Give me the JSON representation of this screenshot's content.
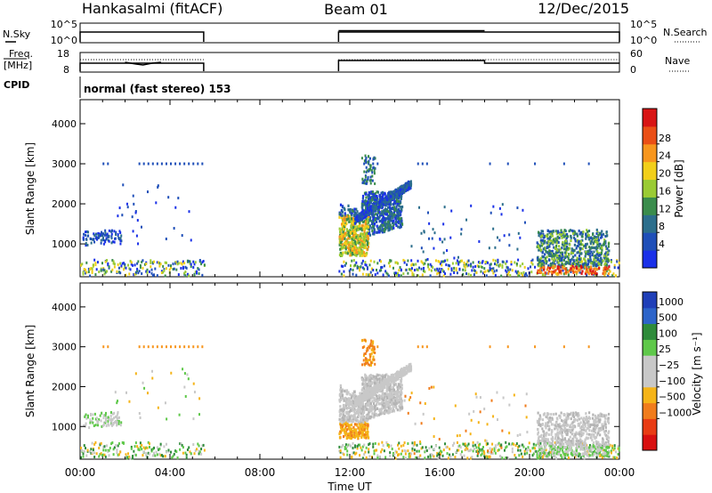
{
  "header": {
    "station": "Hankasalmi (fitACF)",
    "beam": "Beam 01",
    "date": "12/Dec/2015"
  },
  "top_panels": {
    "nsky_label": "N.Sky",
    "nsky_ticks": [
      "10^5",
      "10^0"
    ],
    "nsearch_label": "N.Search",
    "nsearch_ticks": [
      "10^5",
      "10^0"
    ],
    "freq_label_1": "Freq.",
    "freq_label_2": "[MHz]",
    "freq_ticks": [
      "18",
      "8"
    ],
    "nave_label": "Nave",
    "nave_ticks": [
      "60",
      "0"
    ],
    "cpid_label": "CPID",
    "cpid_text": "normal (fast stereo) 153"
  },
  "chart_data": [
    {
      "type": "heatmap",
      "name": "power",
      "xlabel": "",
      "ylabel": "Slant Range [km]",
      "x_range_hours": [
        0,
        24
      ],
      "ylim": [
        180,
        4600
      ],
      "y_ticks": [
        "1000",
        "2000",
        "3000",
        "4000"
      ],
      "colorbar_label": "Power [dB]",
      "colorbar_ticks": [
        "4",
        "8",
        "12",
        "16",
        "20",
        "24",
        "28"
      ],
      "colorbar_colors": [
        "#1a30e8",
        "#1f4fb8",
        "#2c6e8c",
        "#3a8c4c",
        "#9acb34",
        "#f2cf1a",
        "#f7961e",
        "#ea4f16",
        "#d81414"
      ]
    },
    {
      "type": "heatmap",
      "name": "velocity",
      "xlabel": "Time UT",
      "ylabel": "Slant Range [km]",
      "x_ticks": [
        "00:00",
        "04:00",
        "08:00",
        "12:00",
        "16:00",
        "20:00",
        "00:00"
      ],
      "x_range_hours": [
        0,
        24
      ],
      "ylim": [
        180,
        4600
      ],
      "y_ticks": [
        "1000",
        "2000",
        "3000",
        "4000"
      ],
      "colorbar_label": "Velocity [m s⁻¹]",
      "colorbar_ticks": [
        "1000",
        "500",
        "100",
        "25",
        "−25",
        "−100",
        "−500",
        "−1000"
      ],
      "colorbar_colors": [
        "#1f3fb8",
        "#2d64c9",
        "#2e8b3a",
        "#5fc84a",
        "#c8c8c8",
        "#c8c8c8",
        "#f5b418",
        "#f07c1c",
        "#e83c14",
        "#d81010"
      ]
    }
  ],
  "data_gap_hours": [
    5.5,
    11.5
  ]
}
